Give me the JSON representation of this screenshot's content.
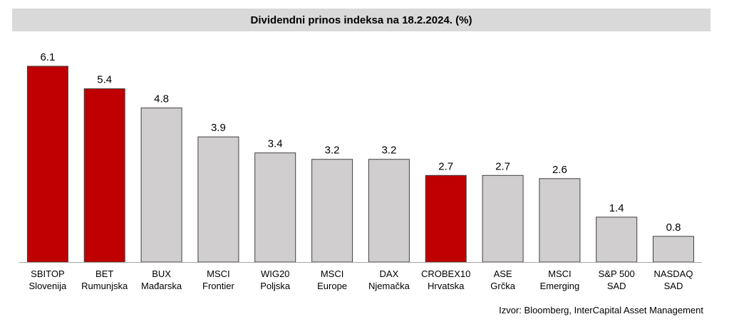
{
  "chart_data": {
    "type": "bar",
    "title": "Dividendni prinos indeksa na 18.2.2024. (%)",
    "categories": [
      [
        "SBITOP",
        "Slovenija"
      ],
      [
        "BET",
        "Rumunjska"
      ],
      [
        "BUX",
        "Mađarska"
      ],
      [
        "MSCI",
        "Frontier"
      ],
      [
        "WIG20",
        "Poljska"
      ],
      [
        "MSCI",
        "Europe"
      ],
      [
        "DAX",
        "Njemačka"
      ],
      [
        "CROBEX10",
        "Hrvatska"
      ],
      [
        "ASE",
        "Grčka"
      ],
      [
        "MSCI",
        "Emerging"
      ],
      [
        "S&P 500",
        "SAD"
      ],
      [
        "NASDAQ",
        "SAD"
      ]
    ],
    "values": [
      6.1,
      5.4,
      4.8,
      3.9,
      3.4,
      3.2,
      3.2,
      2.7,
      2.7,
      2.6,
      1.4,
      0.8
    ],
    "highlight": [
      true,
      true,
      false,
      false,
      false,
      false,
      false,
      true,
      false,
      false,
      false,
      false
    ],
    "colors": {
      "highlight": "#c00000",
      "default": "#d0cece",
      "stroke": "#404040",
      "axis": "#a6a6a6"
    },
    "ylim": [
      0,
      6.1
    ],
    "grid": false,
    "legend": "none"
  },
  "source": "Izvor: Bloomberg, InterCapital Asset Management"
}
